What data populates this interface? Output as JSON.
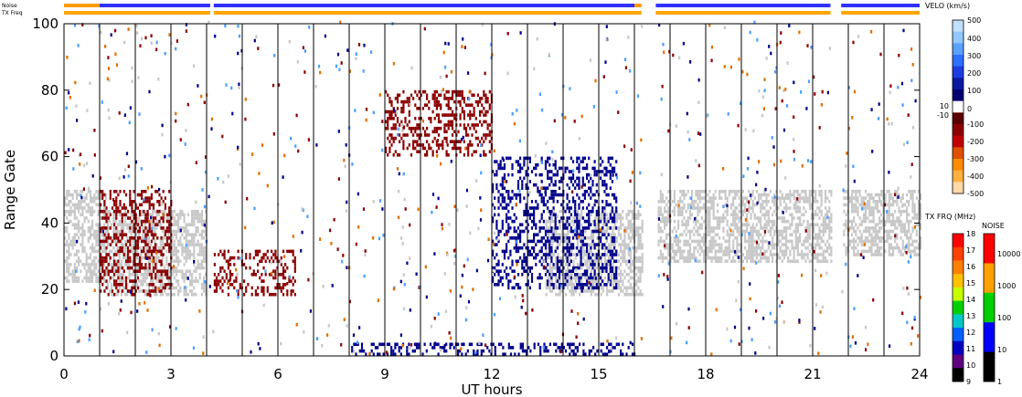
{
  "chart_data": {
    "type": "heatmap",
    "xlabel": "UT hours",
    "ylabel": "Range Gate",
    "xlim": [
      0,
      24
    ],
    "ylim": [
      0,
      100
    ],
    "x_ticks": [
      "0",
      "3",
      "6",
      "9",
      "12",
      "15",
      "18",
      "21",
      "24"
    ],
    "y_ticks": [
      "0",
      "20",
      "40",
      "60",
      "80",
      "100"
    ],
    "scan_boundaries_ut": [
      1.0,
      2.0,
      3.0,
      4.0,
      5.0,
      6.0,
      7.0,
      8.0,
      9.0,
      10.0,
      11.0,
      12.0,
      13.0,
      14.0,
      15.0,
      16.0,
      17.0,
      18.0,
      19.0,
      20.0,
      21.0,
      22.0,
      23.0
    ],
    "data_gap_ut": [
      [
        16.2,
        16.6
      ],
      [
        21.5,
        21.8
      ]
    ],
    "status_bars": {
      "noise_label": "Noise",
      "txfreq_label": "TX Freq",
      "noise_segments": [
        [
          0.0,
          1.0,
          "#ff9900"
        ],
        [
          1.0,
          4.1,
          "#3030ff"
        ],
        [
          4.2,
          16.0,
          "#3030ff"
        ],
        [
          16.0,
          16.2,
          "#ff9900"
        ],
        [
          16.6,
          19.5,
          "#3030ff"
        ],
        [
          19.5,
          21.5,
          "#3030ff"
        ],
        [
          21.8,
          24.0,
          "#3030ff"
        ]
      ],
      "txfreq_segments": [
        [
          0.0,
          4.1,
          "#ffa500"
        ],
        [
          4.2,
          16.2,
          "#ffa500"
        ],
        [
          16.6,
          21.5,
          "#ffa500"
        ],
        [
          21.8,
          24.0,
          "#ffa500"
        ]
      ]
    },
    "regions": [
      {
        "name": "Ground scatter",
        "color": "#c8c8c8",
        "ut_start": 0.0,
        "ut_end": 1.2,
        "gate_low": 22,
        "gate_high": 50
      },
      {
        "name": "Ground scatter",
        "color": "#c8c8c8",
        "ut_start": 1.2,
        "ut_end": 4.0,
        "gate_low": 18,
        "gate_high": 44
      },
      {
        "name": "Ground scatter",
        "color": "#c8c8c8",
        "ut_start": 13.5,
        "ut_end": 16.2,
        "gate_low": 18,
        "gate_high": 44
      },
      {
        "name": "Ground scatter",
        "color": "#c8c8c8",
        "ut_start": 16.6,
        "ut_end": 21.5,
        "gate_low": 28,
        "gate_high": 50
      },
      {
        "name": "Ground scatter",
        "color": "#c8c8c8",
        "ut_start": 21.8,
        "ut_end": 24.0,
        "gate_low": 30,
        "gate_high": 50
      },
      {
        "name": "Away",
        "color": "#8b0000",
        "ut_start": 1.0,
        "ut_end": 3.0,
        "gate_low": 18,
        "gate_high": 50
      },
      {
        "name": "Away",
        "color": "#8b0000",
        "ut_start": 4.2,
        "ut_end": 6.5,
        "gate_low": 18,
        "gate_high": 32
      },
      {
        "name": "Away",
        "color": "#8b0000",
        "ut_start": 9.0,
        "ut_end": 12.0,
        "gate_low": 60,
        "gate_high": 80
      },
      {
        "name": "Toward",
        "color": "#00008b",
        "ut_start": 12.0,
        "ut_end": 15.5,
        "gate_low": 20,
        "gate_high": 60
      },
      {
        "name": "Toward",
        "color": "#00008b",
        "ut_start": 8.0,
        "ut_end": 16.0,
        "gate_low": 0,
        "gate_high": 4
      }
    ],
    "velocity_colorbar": {
      "title": "VELO (km/s)",
      "ticks": [
        "500",
        "400",
        "300",
        "200",
        "100",
        "10",
        "0",
        "-10",
        "-100",
        "-200",
        "-300",
        "-400",
        "-500"
      ]
    },
    "txfreq_colorbar": {
      "title": "TX FRQ (MHz)",
      "ticks": [
        "18",
        "17",
        "16",
        "15",
        "14",
        "13",
        "12",
        "11",
        "10",
        "9"
      ]
    },
    "noise_colorbar": {
      "title": "NOISE",
      "ticks": [
        "10000",
        "1000",
        "100",
        "10",
        "1"
      ]
    }
  }
}
